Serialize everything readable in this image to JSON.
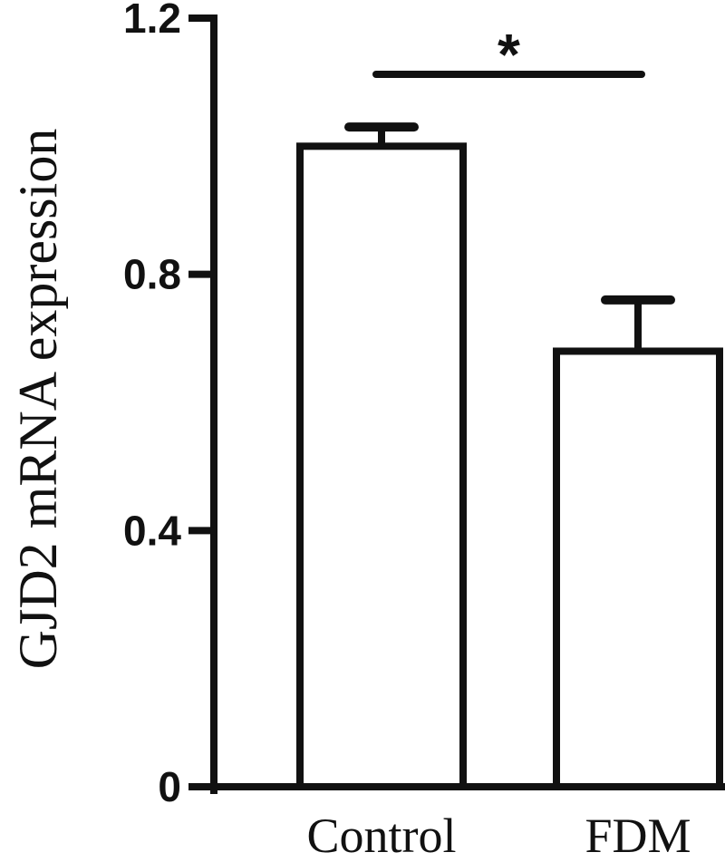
{
  "chart_data": {
    "type": "bar",
    "title": "",
    "xlabel": "",
    "ylabel": "GJD2 mRNA expression",
    "categories": [
      "Control",
      "FDM"
    ],
    "values": [
      1.0,
      0.68
    ],
    "errors": [
      0.03,
      0.08
    ],
    "ylim": [
      0,
      1.2
    ],
    "yticks": [
      {
        "value": 0,
        "label": "0"
      },
      {
        "value": 0.4,
        "label": "0.4"
      },
      {
        "value": 0.8,
        "label": "0.8"
      },
      {
        "value": 1.2,
        "label": "1.2"
      }
    ],
    "grid": false,
    "significance": {
      "between": [
        "Control",
        "FDM"
      ],
      "label": "*"
    }
  }
}
